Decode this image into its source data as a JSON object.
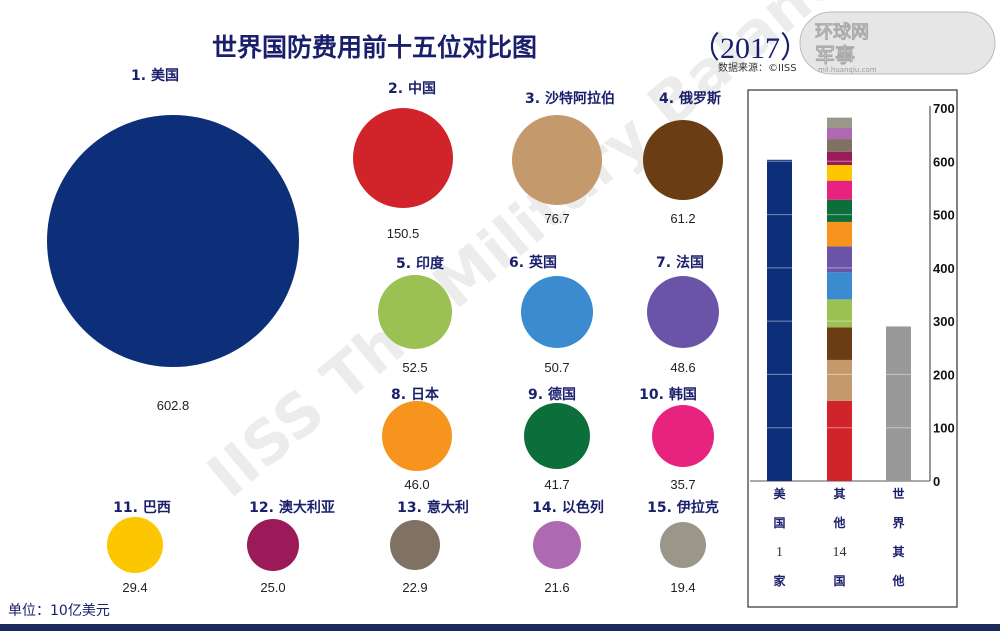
{
  "chart_data": {
    "type": "bubble-and-stacked-bar",
    "title": "世界国防费用前十五位对比图",
    "year": "（2017）",
    "source": "数据来源：©IISS",
    "unit": "单位：10亿美元",
    "watermark": "IISS The Military Balance",
    "logo": {
      "line1": "环球网",
      "line2": "军事",
      "url": "mil.huanqiu.com"
    },
    "countries": [
      {
        "label": "1. 美国",
        "value": 602.8,
        "color": "#0d2f7a"
      },
      {
        "label": "2. 中国",
        "value": 150.5,
        "color": "#d1232a"
      },
      {
        "label": "3. 沙特阿拉伯",
        "value": 76.7,
        "color": "#c49a6c"
      },
      {
        "label": "4. 俄罗斯",
        "value": 61.2,
        "color": "#6b3d14"
      },
      {
        "label": "5. 印度",
        "value": 52.5,
        "color": "#9bc152"
      },
      {
        "label": "6. 英国",
        "value": 50.7,
        "color": "#3a8bd0"
      },
      {
        "label": "7. 法国",
        "value": 48.6,
        "color": "#6a54a8"
      },
      {
        "label": "8. 日本",
        "value": 46.0,
        "color": "#f7941d"
      },
      {
        "label": "9. 德国",
        "value": 41.7,
        "color": "#0b6e3b"
      },
      {
        "label": "10. 韩国",
        "value": 35.7,
        "color": "#e8237f"
      },
      {
        "label": "11. 巴西",
        "value": 29.4,
        "color": "#fcc600"
      },
      {
        "label": "12. 澳大利亚",
        "value": 25.0,
        "color": "#9b1b5a"
      },
      {
        "label": "13. 意大利",
        "value": 22.9,
        "color": "#807262"
      },
      {
        "label": "14. 以色列",
        "value": 21.6,
        "color": "#ae6ab0"
      },
      {
        "label": "15. 伊拉克",
        "value": 19.4,
        "color": "#9a9689"
      }
    ],
    "bar_chart": {
      "ylim": [
        0,
        700
      ],
      "yticks": [
        0,
        100,
        200,
        300,
        400,
        500,
        600,
        700
      ],
      "grid": true,
      "bars": [
        {
          "label_chars": [
            "美",
            "国",
            "1",
            "家"
          ],
          "stack": "us"
        },
        {
          "label_chars": [
            "其",
            "他",
            "14",
            "国"
          ],
          "stack": "others14"
        },
        {
          "label_chars": [
            "世",
            "界",
            "其",
            "他"
          ],
          "value": 290,
          "color": "#999999"
        }
      ]
    }
  }
}
